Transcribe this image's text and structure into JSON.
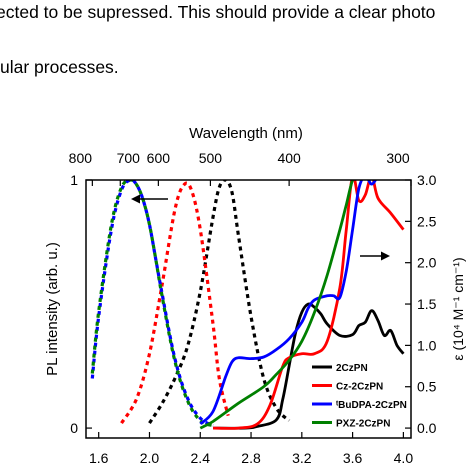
{
  "document": {
    "line1": "ected to be supressed. This should provide a clear photo",
    "line2": "ular processes."
  },
  "chart_data": {
    "type": "line",
    "title": "",
    "xlabel": "",
    "top_xlabel": "Wavelength (nm)",
    "ylabel_left": "PL intensity (arb. u.)",
    "ylabel_right": "ε (10⁴ M⁻¹ cm⁻¹)",
    "xlim": [
      1.5,
      4.06
    ],
    "ylim_left": [
      -0.04,
      1.0
    ],
    "ylim_right": [
      -0.12,
      3.0
    ],
    "x_ticks": [
      "1.6",
      "2.0",
      "2.4",
      "2.8",
      "3.2",
      "3.6",
      "4.0"
    ],
    "x_tick_values": [
      1.6,
      2.0,
      2.4,
      2.8,
      3.2,
      3.6,
      4.0
    ],
    "top_ticks": [
      "800",
      "700",
      "600",
      "500",
      "400",
      "300"
    ],
    "top_tick_values": [
      1.55,
      1.77,
      2.07,
      2.48,
      3.1,
      4.13
    ],
    "y_left_ticks": [
      "0",
      "1"
    ],
    "y_left_tick_values": [
      0,
      1
    ],
    "y_right_ticks": [
      "0.0",
      "0.5",
      "1.0",
      "1.5",
      "2.0",
      "2.5",
      "3.0"
    ],
    "y_right_tick_values": [
      0,
      0.5,
      1.0,
      1.5,
      2.0,
      2.5,
      3.0
    ],
    "legend": {
      "placement": "bottom-right",
      "entries": [
        {
          "label": "2CzPN",
          "color": "#000000"
        },
        {
          "label": "Cz-2CzPN",
          "color": "#ff0000"
        },
        {
          "label": "ᵗBuDPA-2CzPN",
          "color": "#0000ff"
        },
        {
          "label": "PXZ-2CzPN",
          "color": "#008000"
        }
      ]
    },
    "series": [
      {
        "legend_index": 0,
        "kind": "PL",
        "style": "dashed",
        "color": "#000000",
        "x": [
          2.0,
          2.1,
          2.2,
          2.3,
          2.4,
          2.5,
          2.55,
          2.6,
          2.65,
          2.7,
          2.8,
          2.9,
          3.0,
          3.1
        ],
        "y": [
          0.02,
          0.1,
          0.2,
          0.33,
          0.55,
          0.85,
          0.97,
          1.0,
          0.95,
          0.78,
          0.45,
          0.2,
          0.08,
          0.03
        ]
      },
      {
        "legend_index": 1,
        "kind": "PL",
        "style": "dashed",
        "color": "#ff0000",
        "x": [
          1.78,
          1.9,
          2.0,
          2.1,
          2.2,
          2.27,
          2.33,
          2.4,
          2.5,
          2.55,
          2.62
        ],
        "y": [
          0.02,
          0.12,
          0.3,
          0.58,
          0.88,
          0.98,
          0.96,
          0.8,
          0.42,
          0.2,
          0.05
        ]
      },
      {
        "legend_index": 2,
        "kind": "PL",
        "style": "dashed",
        "color": "#0000ff",
        "x": [
          1.55,
          1.6,
          1.7,
          1.78,
          1.85,
          1.9,
          1.95,
          2.0,
          2.05,
          2.1,
          2.2,
          2.3,
          2.4,
          2.5
        ],
        "y": [
          0.2,
          0.45,
          0.8,
          0.96,
          1.0,
          0.98,
          0.92,
          0.82,
          0.68,
          0.54,
          0.28,
          0.12,
          0.04,
          0.01
        ]
      },
      {
        "legend_index": 3,
        "kind": "PL",
        "style": "dashed",
        "color": "#008000",
        "x": [
          1.55,
          1.6,
          1.7,
          1.78,
          1.85,
          1.9,
          1.95,
          2.0,
          2.05,
          2.1,
          2.2,
          2.3,
          2.4,
          2.5
        ],
        "y": [
          0.22,
          0.47,
          0.82,
          0.97,
          1.0,
          0.98,
          0.92,
          0.82,
          0.68,
          0.53,
          0.27,
          0.11,
          0.03,
          0.01
        ]
      },
      {
        "legend_index": 0,
        "kind": "absorption",
        "style": "solid",
        "color": "#000000",
        "x": [
          2.5,
          2.75,
          2.85,
          3.0,
          3.05,
          3.1,
          3.15,
          3.2,
          3.25,
          3.3,
          3.35,
          3.4,
          3.5,
          3.6,
          3.65,
          3.7,
          3.75,
          3.8,
          3.85,
          3.9,
          3.95,
          4.0
        ],
        "y": [
          0.0,
          0.0,
          0.02,
          0.1,
          0.35,
          0.75,
          1.15,
          1.4,
          1.5,
          1.46,
          1.38,
          1.26,
          1.12,
          1.13,
          1.24,
          1.28,
          1.42,
          1.3,
          1.12,
          1.18,
          1.0,
          0.9
        ]
      },
      {
        "legend_index": 1,
        "kind": "absorption",
        "style": "solid",
        "color": "#ff0000",
        "x": [
          2.5,
          2.7,
          2.85,
          2.95,
          3.05,
          3.1,
          3.2,
          3.3,
          3.4,
          3.5,
          3.55,
          3.6,
          3.65,
          3.7,
          3.75,
          3.8,
          3.9,
          4.0
        ],
        "y": [
          0.0,
          0.0,
          0.05,
          0.28,
          0.75,
          0.85,
          0.9,
          0.9,
          1.05,
          1.7,
          2.4,
          3.05,
          2.75,
          2.82,
          3.05,
          2.78,
          2.6,
          2.4
        ]
      },
      {
        "legend_index": 2,
        "kind": "absorption",
        "style": "solid",
        "color": "#0000ff",
        "x": [
          2.4,
          2.5,
          2.6,
          2.65,
          2.7,
          2.8,
          2.9,
          3.0,
          3.1,
          3.2,
          3.25,
          3.3,
          3.4,
          3.45,
          3.5,
          3.55,
          3.6,
          3.65,
          3.7,
          3.75,
          3.8
        ],
        "y": [
          0.05,
          0.2,
          0.62,
          0.8,
          0.85,
          0.84,
          0.86,
          0.95,
          1.08,
          1.28,
          1.45,
          1.55,
          1.6,
          1.6,
          1.58,
          1.9,
          2.4,
          2.9,
          3.05,
          2.95,
          3.05
        ]
      },
      {
        "legend_index": 3,
        "kind": "absorption",
        "style": "solid",
        "color": "#008000",
        "x": [
          2.4,
          2.5,
          2.7,
          2.9,
          3.0,
          3.1,
          3.2,
          3.3,
          3.4,
          3.5,
          3.55,
          3.6,
          3.65
        ],
        "y": [
          0.0,
          0.08,
          0.3,
          0.5,
          0.65,
          0.82,
          1.05,
          1.4,
          1.85,
          2.4,
          2.7,
          3.0,
          3.1
        ]
      }
    ]
  }
}
